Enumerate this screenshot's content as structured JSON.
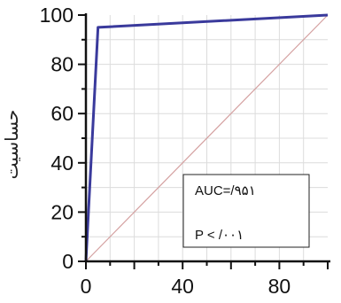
{
  "chart_data": {
    "type": "line",
    "ylabel": "حساسیت",
    "xlabel": "",
    "xlim": [
      0,
      100
    ],
    "ylim": [
      0,
      100
    ],
    "x_ticks": [
      "0",
      "40",
      "80"
    ],
    "y_ticks": [
      "0",
      "20",
      "40",
      "60",
      "80",
      "100"
    ],
    "series": [
      {
        "x": [
          0,
          5,
          100
        ],
        "y": [
          0,
          95,
          100
        ],
        "color": "#3a3a9c"
      }
    ],
    "reference_line": {
      "x": [
        0,
        100
      ],
      "y": [
        0,
        100
      ],
      "color": "#d4a0a0"
    },
    "annotation": {
      "auc_text": "AUC=/۹۵۱",
      "p_text": "P < /۰۰۱"
    }
  }
}
